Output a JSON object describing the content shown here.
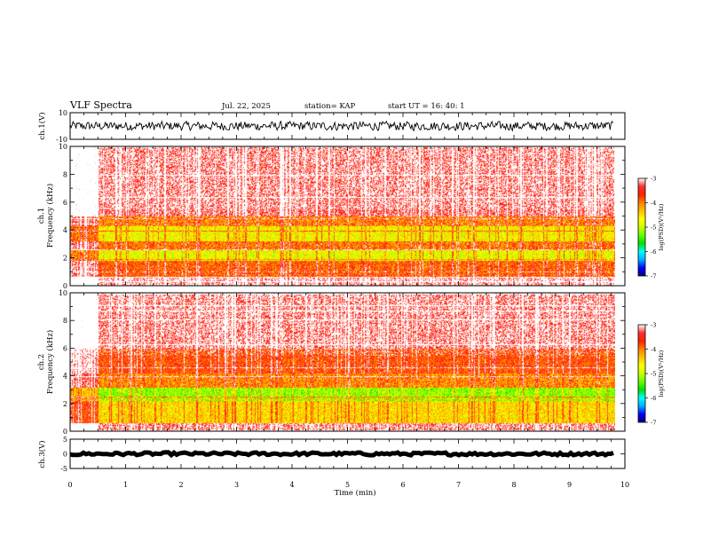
{
  "header": {
    "title": "VLF Spectra",
    "date": "Jul. 22, 2025",
    "station": "station= KAP",
    "start": "start UT = 16: 40: 1"
  },
  "colors": {
    "spectrum_scale": [
      "#00007a",
      "#0000ff",
      "#00b0ff",
      "#00ffff",
      "#00e000",
      "#66ff00",
      "#ccff00",
      "#ffff00",
      "#ffc000",
      "#ff8000",
      "#ff2000",
      "#ff3030",
      "#ffffff"
    ]
  },
  "chart_data": [
    {
      "id": "ch1-voltage",
      "type": "line",
      "ylabel": "ch.1(V)",
      "ylim": [
        -10,
        10
      ],
      "yticks": [
        -10,
        10
      ],
      "x_range_min": [
        0,
        9.8
      ],
      "level_mean": 0,
      "noise_amplitude": 4
    },
    {
      "id": "ch1-spectrogram",
      "type": "heatmap",
      "ylabel": "ch.1 Frequency (kHz)",
      "ylim": [
        0,
        10
      ],
      "yticks": [
        0,
        2,
        4,
        6,
        8,
        10
      ],
      "x_range_min": [
        0,
        9.8
      ],
      "colorbar": {
        "label": "log(PSD)(V²/Hz)",
        "range": [
          -7,
          -3
        ],
        "ticks": [
          -3,
          -4,
          -5,
          -6,
          -7
        ]
      },
      "bands_khz": [
        {
          "from": 0,
          "to": 0.6,
          "level": -3.2
        },
        {
          "from": 0.6,
          "to": 1.8,
          "level": -4.0
        },
        {
          "from": 1.8,
          "to": 2.6,
          "level": -4.9
        },
        {
          "from": 2.6,
          "to": 3.2,
          "level": -4.1
        },
        {
          "from": 3.2,
          "to": 4.3,
          "level": -4.8
        },
        {
          "from": 4.3,
          "to": 5.0,
          "level": -4.2
        },
        {
          "from": 5.0,
          "to": 10,
          "level": -3.4
        }
      ]
    },
    {
      "id": "ch2-spectrogram",
      "type": "heatmap",
      "ylabel": "ch.2 Frequency (kHz)",
      "ylim": [
        0,
        10
      ],
      "yticks": [
        0,
        2,
        4,
        6,
        8,
        10
      ],
      "x_range_min": [
        0,
        9.8
      ],
      "colorbar": {
        "label": "log(PSD)(V²/Hz)",
        "range": [
          -7,
          -3
        ],
        "ticks": [
          -3,
          -4,
          -5,
          -6,
          -7
        ]
      },
      "bands_khz": [
        {
          "from": 0,
          "to": 0.6,
          "level": -3.3
        },
        {
          "from": 0.6,
          "to": 2.2,
          "level": -4.6
        },
        {
          "from": 2.2,
          "to": 3.2,
          "level": -5.3
        },
        {
          "from": 3.2,
          "to": 4.2,
          "level": -4.2
        },
        {
          "from": 4.2,
          "to": 6.0,
          "level": -3.9
        },
        {
          "from": 6.0,
          "to": 10,
          "level": -3.4
        }
      ]
    },
    {
      "id": "ch3-voltage",
      "type": "line",
      "ylabel": "ch.3(V)",
      "ylim": [
        -5,
        5
      ],
      "yticks": [
        -5,
        0,
        5
      ],
      "x_range_min": [
        0,
        9.8
      ],
      "level_mean": 0,
      "noise_amplitude": 0.6
    }
  ],
  "xaxis": {
    "label": "Time (min)",
    "xlim": [
      0,
      10
    ],
    "ticks": [
      0,
      1,
      2,
      3,
      4,
      5,
      6,
      7,
      8,
      9,
      10
    ]
  }
}
